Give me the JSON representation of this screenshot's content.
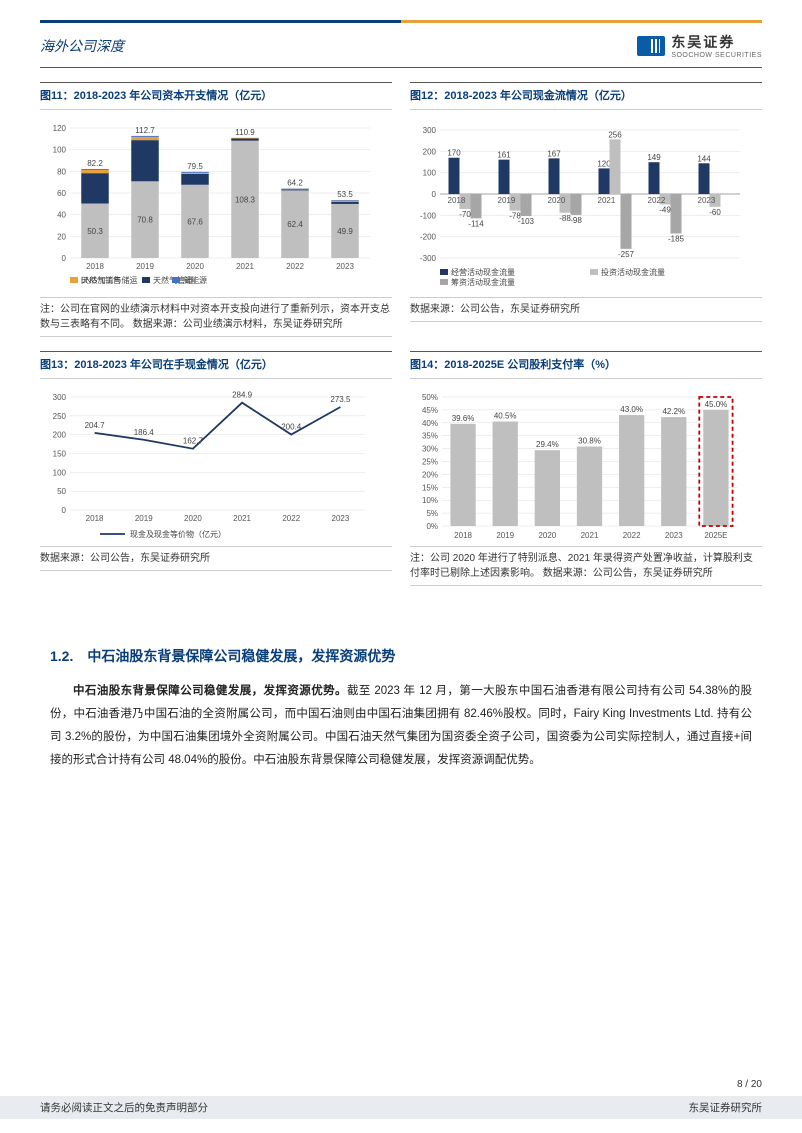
{
  "header": {
    "category": "海外公司深度",
    "logo_cn": "东吴证券",
    "logo_en": "SOOCHOW SECURITIES"
  },
  "chart11": {
    "title": "图11：2018-2023 年公司资本开支情况（亿元）",
    "type": "stacked_bar",
    "years": [
      "2018",
      "2019",
      "2020",
      "2021",
      "2022",
      "2023"
    ],
    "series": [
      {
        "name": "天然气销售",
        "color": "#bfbfbf",
        "values": [
          50.3,
          70.8,
          67.6,
          108.3,
          62.4,
          49.9
        ]
      },
      {
        "name": "天然气管道",
        "color": "#1f3864",
        "values": [
          28,
          38,
          10,
          2,
          1,
          2
        ]
      },
      {
        "name": "LNG加工与储运",
        "color": "#e8a03a",
        "values": [
          3,
          3,
          1,
          0.5,
          0.5,
          1
        ]
      },
      {
        "name": "新能源",
        "color": "#4472c4",
        "values": [
          0.9,
          0.9,
          0.9,
          0.1,
          0.3,
          0.6
        ]
      }
    ],
    "totals": [
      82.2,
      112.7,
      79.5,
      110.9,
      64.2,
      53.5
    ],
    "bottoms": [
      50.3,
      70.8,
      67.6,
      108.3,
      62.4,
      49.9
    ],
    "ylim": [
      0,
      120
    ],
    "ytick": 20,
    "note": "注：公司在官网的业绩演示材料中对资本开支投向进行了重新列示，资本开支总数与三表略有不同。\n数据来源：公司业绩演示材料，东吴证券研究所"
  },
  "chart12": {
    "title": "图12：2018-2023 年公司现金流情况（亿元）",
    "type": "grouped_bar",
    "years": [
      "2018",
      "2019",
      "2020",
      "2021",
      "2022",
      "2023"
    ],
    "series": [
      {
        "name": "经营活动现金流量",
        "color": "#1f3864",
        "values": [
          170,
          161,
          167,
          120,
          149,
          144
        ]
      },
      {
        "name": "投资活动现金流量",
        "color": "#bfbfbf",
        "values": [
          -70,
          -78,
          -88,
          256,
          -49,
          -60
        ]
      },
      {
        "name": "筹资活动现金流量",
        "color": "#a6a6a6",
        "values": [
          -114,
          -103,
          -98,
          -257,
          -185,
          0
        ]
      }
    ],
    "ylim": [
      -300,
      300
    ],
    "ytick": 100,
    "note": "数据来源：公司公告，东吴证券研究所"
  },
  "chart13": {
    "title": "图13：2018-2023 年公司在手现金情况（亿元）",
    "type": "line",
    "years": [
      "2018",
      "2019",
      "2020",
      "2021",
      "2022",
      "2023"
    ],
    "values": [
      204.7,
      186.4,
      162.7,
      284.9,
      200.4,
      273.5
    ],
    "legend": "现金及现金等价物（亿元）",
    "color": "#1f3864",
    "ylim": [
      0,
      300
    ],
    "ytick": 50,
    "note": "数据来源：公司公告，东吴证券研究所"
  },
  "chart14": {
    "title": "图14：2018-2025E 公司股利支付率（%）",
    "type": "bar",
    "years": [
      "2018",
      "2019",
      "2020",
      "2021",
      "2022",
      "2023",
      "2025E"
    ],
    "values": [
      39.6,
      40.5,
      29.4,
      30.8,
      43.0,
      42.2,
      45.0
    ],
    "labels": [
      "39.6%",
      "40.5%",
      "29.4%",
      "30.8%",
      "43.0%",
      "42.2%",
      "45.0%"
    ],
    "color": "#bfbfbf",
    "highlight_index": 6,
    "highlight_color": "#c00000",
    "ylim": [
      0,
      50
    ],
    "ytick": 5,
    "note": "注：公司 2020 年进行了特别派息、2021 年录得资产处置净收益，计算股利支付率时已剔除上述因素影响。\n数据来源：公司公告，东吴证券研究所"
  },
  "section": {
    "number": "1.2.",
    "title": "中石油股东背景保障公司稳健发展，发挥资源优势",
    "body_bold": "中石油股东背景保障公司稳健发展，发挥资源优势。",
    "body": "截至 2023 年 12 月，第一大股东中国石油香港有限公司持有公司 54.38%的股份，中石油香港乃中国石油的全资附属公司，而中国石油则由中国石油集团拥有 82.46%股权。同时，Fairy King Investments Ltd. 持有公司 3.2%的股份，为中国石油集团境外全资附属公司。中国石油天然气集团为国资委全资子公司，国资委为公司实际控制人，通过直接+间接的形式合计持有公司 48.04%的股份。中石油股东背景保障公司稳健发展，发挥资源调配优势。"
  },
  "footer": {
    "page": "8 / 20",
    "disclaimer": "请务必阅读正文之后的免责声明部分",
    "institute": "东吴证券研究所"
  }
}
